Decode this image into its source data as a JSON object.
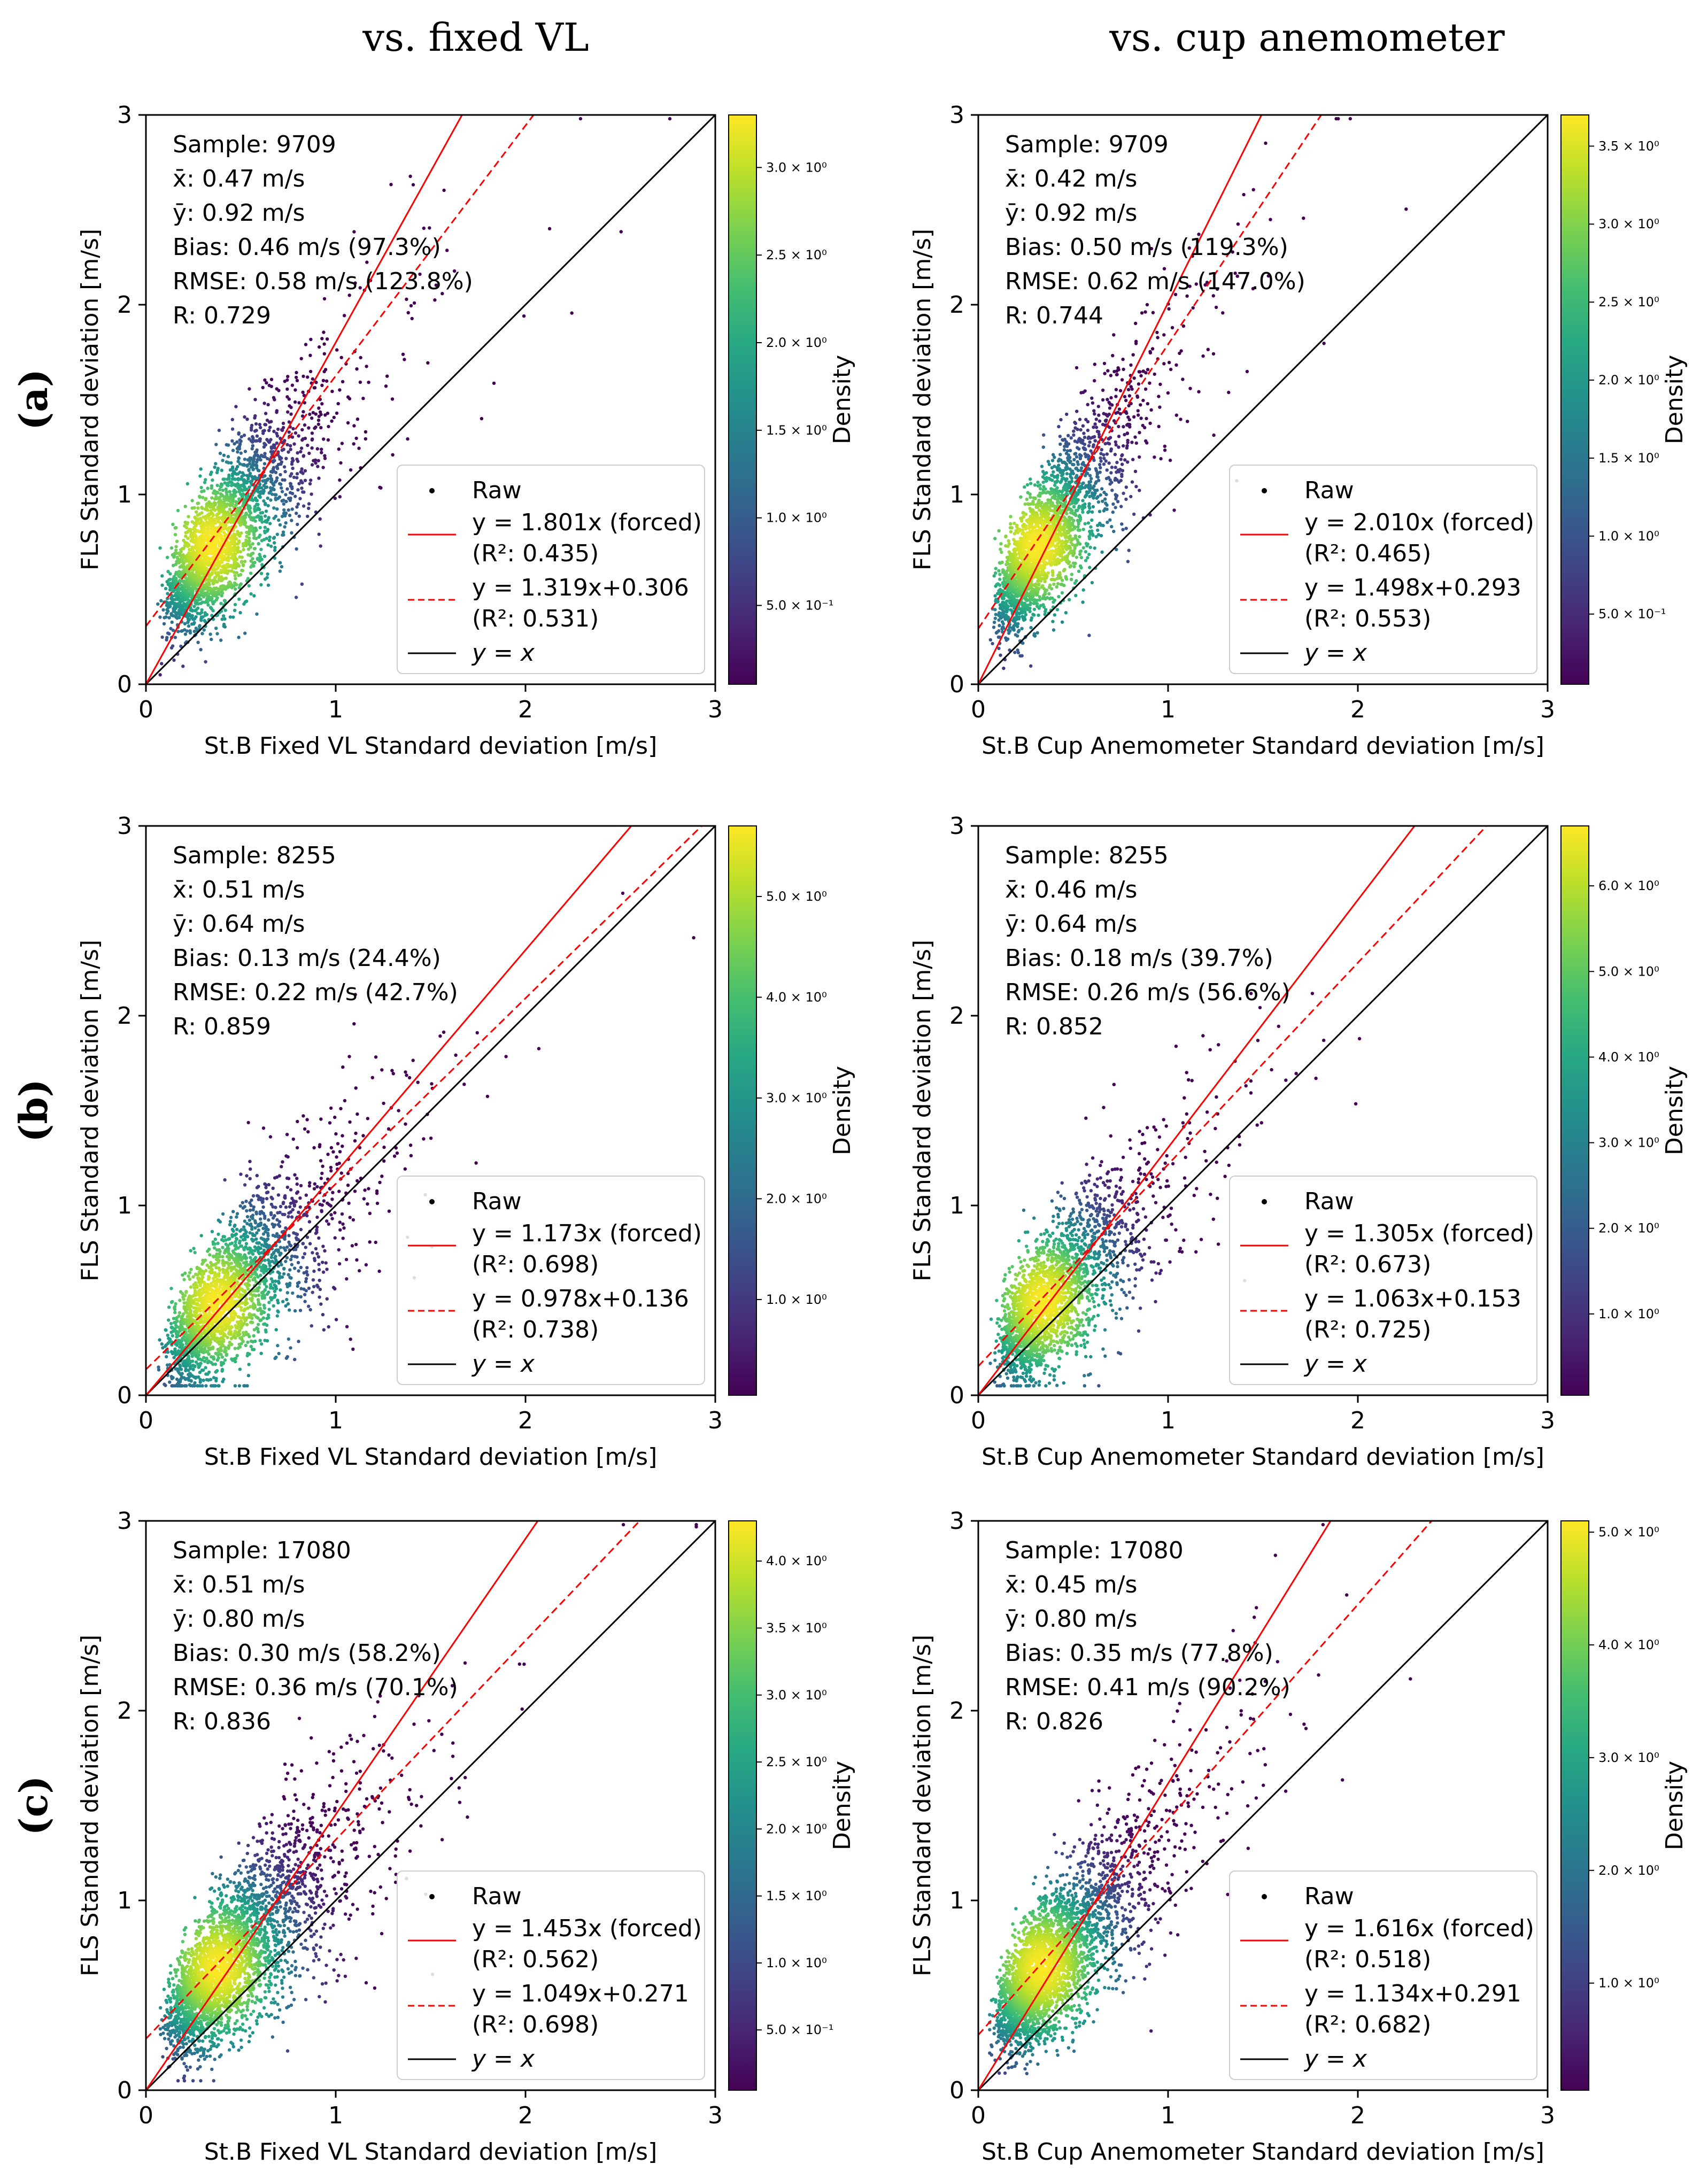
{
  "column_titles": [
    "vs. fixed VL",
    "vs. cup anemometer"
  ],
  "row_labels": [
    "(a)",
    "(b)",
    "(c)"
  ],
  "common": {
    "ylabel": "FLS Standard deviation [m/s]",
    "xlim": [
      0,
      3
    ],
    "ylim": [
      0,
      3
    ],
    "ticks": [
      "0",
      "1",
      "2",
      "3"
    ],
    "colorbar_label": "Density",
    "legend": {
      "raw": "Raw",
      "identity": "y = x"
    }
  },
  "chart_data": [
    {
      "type": "scatter",
      "row": 0,
      "col": 0,
      "xlabel": "St.B Fixed VL Standard deviation [m/s]",
      "stats": [
        "Sample: 9709",
        "x̄: 0.47 m/s",
        "ȳ: 0.92 m/s",
        "Bias: 0.46 m/s (97.3%)",
        "RMSE: 0.58 m/s (123.8%)",
        "R: 0.729"
      ],
      "forced_fit": {
        "slope": 1.801,
        "label": "y = 1.801x (forced)",
        "r2_label": "(R²: 0.435)"
      },
      "linear_fit": {
        "slope": 1.319,
        "intercept": 0.306,
        "label": "y = 1.319x+0.306",
        "r2_label": "(R²: 0.531)"
      },
      "cloud": {
        "mean_x": 0.47,
        "mean_y": 0.92,
        "n_plot": 2600
      },
      "colorbar": {
        "ticks": [
          0.5,
          1.0,
          1.5,
          2.0,
          2.5,
          3.0
        ],
        "tick_labels": [
          "5.0 × 10⁻¹",
          "1.0 × 10⁰",
          "1.5 × 10⁰",
          "2.0 × 10⁰",
          "2.5 × 10⁰",
          "3.0 × 10⁰"
        ],
        "range": [
          0.05,
          3.3
        ]
      }
    },
    {
      "type": "scatter",
      "row": 0,
      "col": 1,
      "xlabel": "St.B Cup Anemometer Standard deviation [m/s]",
      "stats": [
        "Sample: 9709",
        "x̄: 0.42 m/s",
        "ȳ: 0.92 m/s",
        "Bias: 0.50 m/s (119.3%)",
        "RMSE: 0.62 m/s (147.0%)",
        "R: 0.744"
      ],
      "forced_fit": {
        "slope": 2.01,
        "label": "y = 2.010x (forced)",
        "r2_label": "(R²: 0.465)"
      },
      "linear_fit": {
        "slope": 1.498,
        "intercept": 0.293,
        "label": "y = 1.498x+0.293",
        "r2_label": "(R²: 0.553)"
      },
      "cloud": {
        "mean_x": 0.42,
        "mean_y": 0.92,
        "n_plot": 2600
      },
      "colorbar": {
        "ticks": [
          0.5,
          1.0,
          1.5,
          2.0,
          2.5,
          3.0,
          3.5
        ],
        "tick_labels": [
          "5.0 × 10⁻¹",
          "1.0 × 10⁰",
          "1.5 × 10⁰",
          "2.0 × 10⁰",
          "2.5 × 10⁰",
          "3.0 × 10⁰",
          "3.5 × 10⁰"
        ],
        "range": [
          0.05,
          3.7
        ]
      }
    },
    {
      "type": "scatter",
      "row": 1,
      "col": 0,
      "xlabel": "St.B Fixed VL Standard deviation [m/s]",
      "stats": [
        "Sample: 8255",
        "x̄: 0.51 m/s",
        "ȳ: 0.64 m/s",
        "Bias: 0.13 m/s (24.4%)",
        "RMSE: 0.22 m/s (42.7%)",
        "R: 0.859"
      ],
      "forced_fit": {
        "slope": 1.173,
        "label": "y = 1.173x (forced)",
        "r2_label": "(R²: 0.698)"
      },
      "linear_fit": {
        "slope": 0.978,
        "intercept": 0.136,
        "label": "y = 0.978x+0.136",
        "r2_label": "(R²: 0.738)"
      },
      "cloud": {
        "mean_x": 0.51,
        "mean_y": 0.64,
        "n_plot": 2400
      },
      "colorbar": {
        "ticks": [
          1.0,
          2.0,
          3.0,
          4.0,
          5.0
        ],
        "tick_labels": [
          "1.0 × 10⁰",
          "2.0 × 10⁰",
          "3.0 × 10⁰",
          "4.0 × 10⁰",
          "5.0 × 10⁰"
        ],
        "range": [
          0.05,
          5.7
        ]
      }
    },
    {
      "type": "scatter",
      "row": 1,
      "col": 1,
      "xlabel": "St.B Cup Anemometer Standard deviation [m/s]",
      "stats": [
        "Sample: 8255",
        "x̄: 0.46 m/s",
        "ȳ: 0.64 m/s",
        "Bias: 0.18 m/s (39.7%)",
        "RMSE: 0.26 m/s (56.6%)",
        "R: 0.852"
      ],
      "forced_fit": {
        "slope": 1.305,
        "label": "y = 1.305x (forced)",
        "r2_label": "(R²: 0.673)"
      },
      "linear_fit": {
        "slope": 1.063,
        "intercept": 0.153,
        "label": "y = 1.063x+0.153",
        "r2_label": "(R²: 0.725)"
      },
      "cloud": {
        "mean_x": 0.46,
        "mean_y": 0.64,
        "n_plot": 2400
      },
      "colorbar": {
        "ticks": [
          1.0,
          2.0,
          3.0,
          4.0,
          5.0,
          6.0
        ],
        "tick_labels": [
          "1.0 × 10⁰",
          "2.0 × 10⁰",
          "3.0 × 10⁰",
          "4.0 × 10⁰",
          "5.0 × 10⁰",
          "6.0 × 10⁰"
        ],
        "range": [
          0.05,
          6.7
        ]
      }
    },
    {
      "type": "scatter",
      "row": 2,
      "col": 0,
      "xlabel": "St.B Fixed VL Standard deviation [m/s]",
      "stats": [
        "Sample: 17080",
        "x̄: 0.51 m/s",
        "ȳ: 0.80 m/s",
        "Bias: 0.30 m/s (58.2%)",
        "RMSE: 0.36 m/s (70.1%)",
        "R: 0.836"
      ],
      "forced_fit": {
        "slope": 1.453,
        "label": "y = 1.453x (forced)",
        "r2_label": "(R²: 0.562)"
      },
      "linear_fit": {
        "slope": 1.049,
        "intercept": 0.271,
        "label": "y = 1.049x+0.271",
        "r2_label": "(R²: 0.698)"
      },
      "cloud": {
        "mean_x": 0.51,
        "mean_y": 0.8,
        "n_plot": 3200
      },
      "colorbar": {
        "ticks": [
          0.5,
          1.0,
          1.5,
          2.0,
          2.5,
          3.0,
          3.5,
          4.0
        ],
        "tick_labels": [
          "5.0 × 10⁻¹",
          "1.0 × 10⁰",
          "1.5 × 10⁰",
          "2.0 × 10⁰",
          "2.5 × 10⁰",
          "3.0 × 10⁰",
          "3.5 × 10⁰",
          "4.0 × 10⁰"
        ],
        "range": [
          0.05,
          4.3
        ]
      }
    },
    {
      "type": "scatter",
      "row": 2,
      "col": 1,
      "xlabel": "St.B Cup Anemometer Standard deviation [m/s]",
      "stats": [
        "Sample: 17080",
        "x̄: 0.45 m/s",
        "ȳ: 0.80 m/s",
        "Bias: 0.35 m/s (77.8%)",
        "RMSE: 0.41 m/s (90.2%)",
        "R: 0.826"
      ],
      "forced_fit": {
        "slope": 1.616,
        "label": "y = 1.616x (forced)",
        "r2_label": "(R²: 0.518)"
      },
      "linear_fit": {
        "slope": 1.134,
        "intercept": 0.291,
        "label": "y = 1.134x+0.291",
        "r2_label": "(R²: 0.682)"
      },
      "cloud": {
        "mean_x": 0.45,
        "mean_y": 0.8,
        "n_plot": 3200
      },
      "colorbar": {
        "ticks": [
          1.0,
          2.0,
          3.0,
          4.0,
          5.0
        ],
        "tick_labels": [
          "1.0 × 10⁰",
          "2.0 × 10⁰",
          "3.0 × 10⁰",
          "4.0 × 10⁰",
          "5.0 × 10⁰"
        ],
        "range": [
          0.05,
          5.1
        ]
      }
    }
  ]
}
